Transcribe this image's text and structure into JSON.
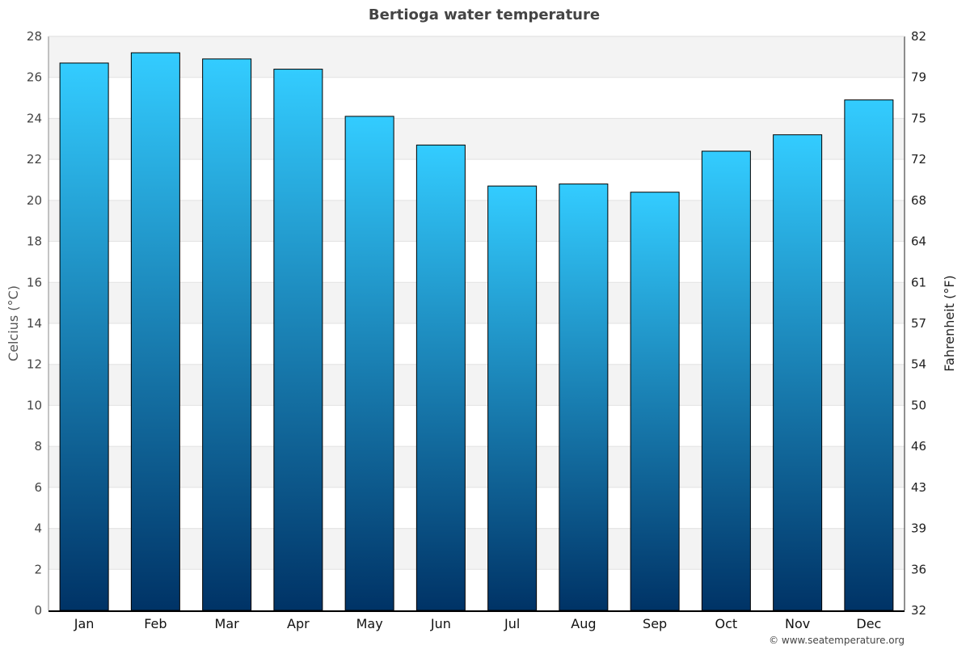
{
  "chart_data": {
    "type": "bar",
    "title": "Bertioga water temperature",
    "ylabel": "Celcius (°C)",
    "ylabel_right": "Fahrenheit (°F)",
    "categories": [
      "Jan",
      "Feb",
      "Mar",
      "Apr",
      "May",
      "Jun",
      "Jul",
      "Aug",
      "Sep",
      "Oct",
      "Nov",
      "Dec"
    ],
    "values": [
      26.7,
      27.2,
      26.9,
      26.4,
      24.1,
      22.7,
      20.7,
      20.8,
      20.4,
      22.4,
      23.2,
      24.9
    ],
    "ylim": [
      0,
      28
    ],
    "yticks": [
      0,
      2,
      4,
      6,
      8,
      10,
      12,
      14,
      16,
      18,
      20,
      22,
      24,
      26,
      28
    ],
    "yticks_right": [
      "32",
      "36",
      "39",
      "43",
      "46",
      "50",
      "54",
      "57",
      "61",
      "64",
      "68",
      "72",
      "75",
      "79",
      "82"
    ],
    "grid": true,
    "colors": {
      "bar_top": "#33ccff",
      "bar_bottom": "#003366",
      "band": "#f3f3f3"
    }
  },
  "credit": "© www.seatemperature.org"
}
